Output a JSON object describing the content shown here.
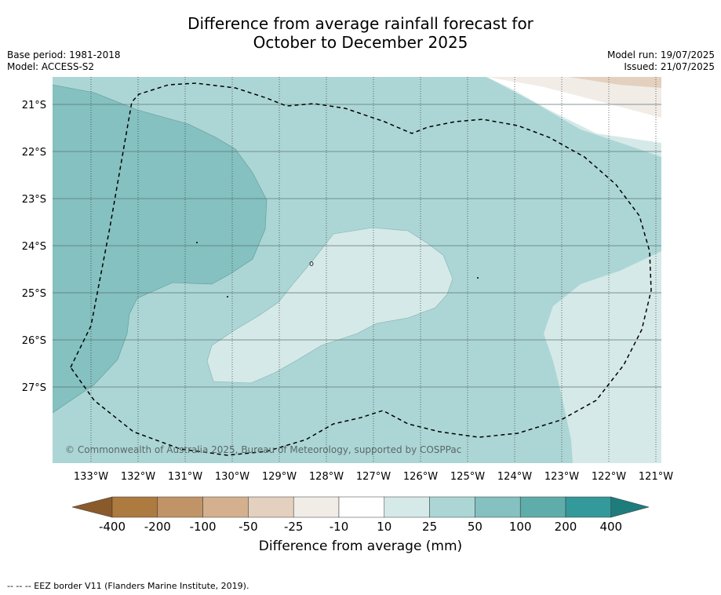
{
  "title": {
    "line1": "Difference from average rainfall forecast for",
    "line2": "October to December 2025"
  },
  "meta_left": {
    "base_period": "Base period: 1981-2018",
    "model": "Model: ACCESS-S2"
  },
  "meta_right": {
    "model_run": "Model run: 19/07/2025",
    "issued": "Issued: 21/07/2025"
  },
  "map": {
    "lon_labels": [
      "133°W",
      "132°W",
      "131°W",
      "130°W",
      "129°W",
      "128°W",
      "127°W",
      "126°W",
      "125°W",
      "124°W",
      "123°W",
      "122°W",
      "121°W"
    ],
    "lat_labels": [
      "21°S",
      "22°S",
      "23°S",
      "24°S",
      "25°S",
      "26°S",
      "27°S"
    ],
    "copyright": "© Commonwealth of Australia 2025, Bureau of Meteorology, supported by COSPPac"
  },
  "colorbar": {
    "tick_labels": [
      "-400",
      "-200",
      "-100",
      "-50",
      "-25",
      "-10",
      "10",
      "25",
      "50",
      "100",
      "200",
      "400"
    ],
    "colors": [
      "#8a5a2b",
      "#ad7a40",
      "#c19468",
      "#d4b08f",
      "#e4d0be",
      "#f1ece6",
      "#ffffff",
      "#d5e9e8",
      "#acd6d5",
      "#84c1c0",
      "#5fadab",
      "#34999a",
      "#1f7c7c"
    ],
    "title": "Difference from average (mm)"
  },
  "footnote": "--  --  -- EEZ border V11 (Flanders Marine Institute, 2019)."
}
